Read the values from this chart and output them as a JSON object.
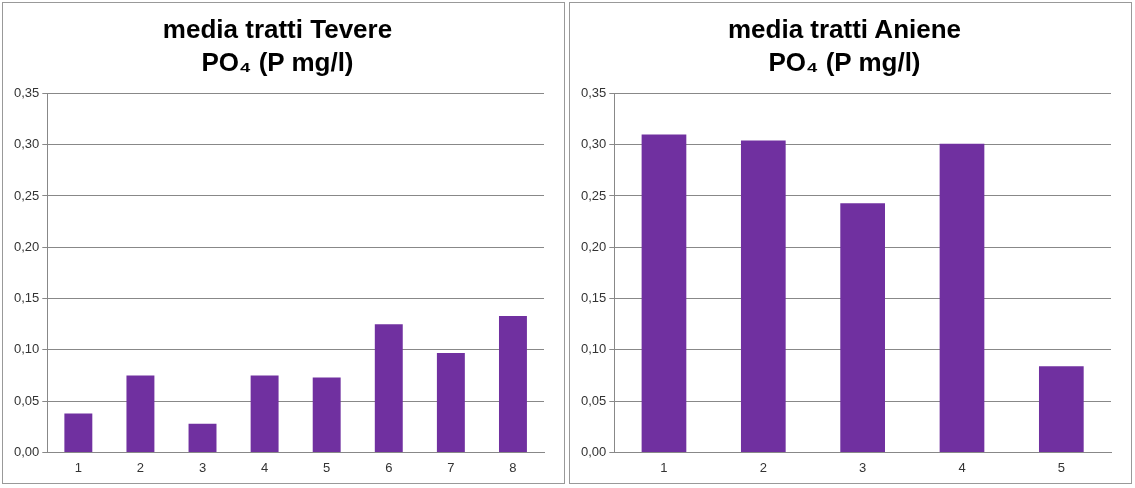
{
  "chart_data": [
    {
      "type": "bar",
      "title": "media tratti Tevere",
      "subtitle": "PO₄ (P mg/l)",
      "categories": [
        "1",
        "2",
        "3",
        "4",
        "5",
        "6",
        "7",
        "8"
      ],
      "values": [
        0.038,
        0.075,
        0.028,
        0.075,
        0.073,
        0.125,
        0.097,
        0.133
      ],
      "color": "#7030a0",
      "ylim": [
        0,
        0.35
      ],
      "yticks": [
        {
          "value": 0,
          "label": "0,00"
        },
        {
          "value": 0.05,
          "label": "0,05"
        },
        {
          "value": 0.1,
          "label": "0,10"
        },
        {
          "value": 0.15,
          "label": "0,15"
        },
        {
          "value": 0.2,
          "label": "0,20"
        },
        {
          "value": 0.25,
          "label": "0,25"
        },
        {
          "value": 0.3,
          "label": "0,30"
        },
        {
          "value": 0.35,
          "label": "0,35"
        }
      ],
      "grid": "y",
      "legend": false
    },
    {
      "type": "bar",
      "title": "media tratti Aniene",
      "subtitle": "PO₄ (P mg/l)",
      "categories": [
        "1",
        "2",
        "3",
        "4",
        "5"
      ],
      "values": [
        0.31,
        0.304,
        0.243,
        0.301,
        0.084
      ],
      "color": "#7030a0",
      "ylim": [
        0,
        0.35
      ],
      "yticks": [
        {
          "value": 0,
          "label": "0,00"
        },
        {
          "value": 0.05,
          "label": "0,05"
        },
        {
          "value": 0.1,
          "label": "0,10"
        },
        {
          "value": 0.15,
          "label": "0,15"
        },
        {
          "value": 0.2,
          "label": "0,20"
        },
        {
          "value": 0.25,
          "label": "0,25"
        },
        {
          "value": 0.3,
          "label": "0,30"
        },
        {
          "value": 0.35,
          "label": "0,35"
        }
      ],
      "grid": "y",
      "legend": false
    }
  ]
}
